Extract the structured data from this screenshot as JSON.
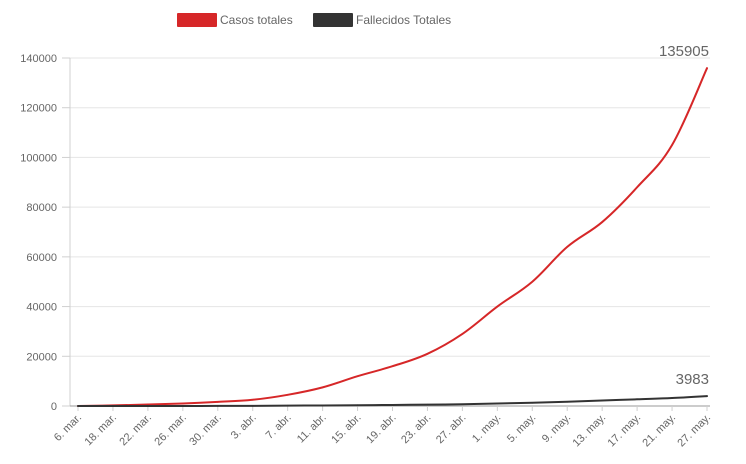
{
  "chart_data": {
    "type": "line",
    "categories": [
      "6. mar.",
      "18. mar.",
      "22. mar.",
      "26. mar.",
      "30. mar.",
      "3. abr.",
      "7. abr.",
      "11. abr.",
      "15. abr.",
      "19. abr.",
      "23. abr.",
      "27. abr.",
      "1. may.",
      "5. may.",
      "9. may.",
      "13. may.",
      "17. may.",
      "21. may.",
      "27. may."
    ],
    "series": [
      {
        "name": "Casos totales",
        "color": "#d62728",
        "values": [
          1,
          238,
          600,
          1000,
          1650,
          2500,
          4500,
          7500,
          12000,
          16000,
          21000,
          29000,
          40000,
          50000,
          64000,
          74000,
          88000,
          105000,
          135905
        ]
      },
      {
        "name": "Fallecidos Totales",
        "color": "#333333",
        "values": [
          0,
          2,
          5,
          10,
          30,
          70,
          140,
          220,
          320,
          420,
          550,
          700,
          1000,
          1300,
          1700,
          2200,
          2700,
          3200,
          3983
        ]
      }
    ],
    "ylim": [
      0,
      140000
    ],
    "yticks": [
      "0",
      "20000",
      "40000",
      "60000",
      "80000",
      "100000",
      "120000",
      "140000"
    ],
    "grid": true,
    "legend": "top",
    "end_labels": [
      "135905",
      "3983"
    ]
  }
}
